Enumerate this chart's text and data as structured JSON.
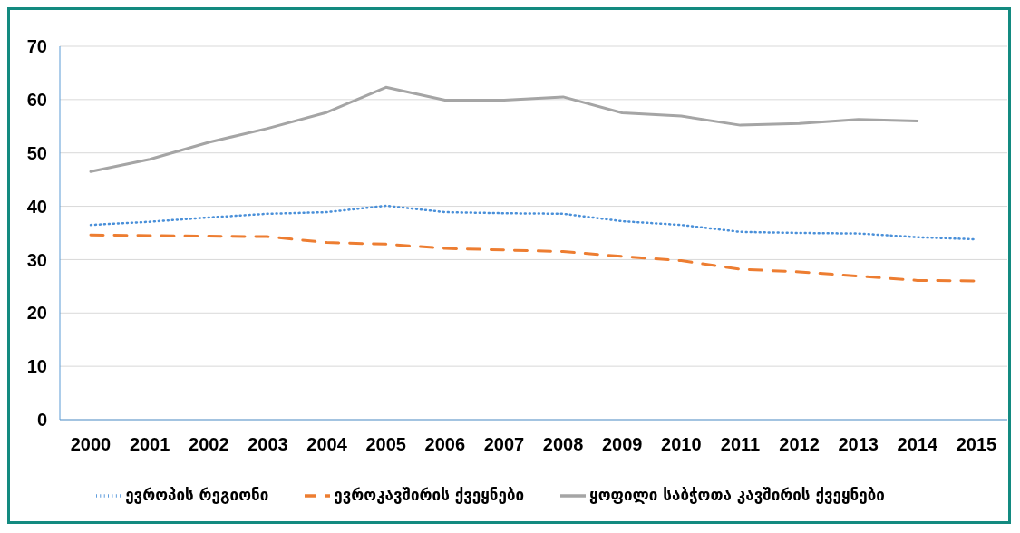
{
  "chart_data": {
    "type": "line",
    "categories": [
      "2000",
      "2001",
      "2002",
      "2003",
      "2004",
      "2005",
      "2006",
      "2007",
      "2008",
      "2009",
      "2010",
      "2011",
      "2012",
      "2013",
      "2014",
      "2015"
    ],
    "series": [
      {
        "name": "ევროპის რეგიონი",
        "color": "#4a90d9",
        "line_style": "dotted",
        "values": [
          36.5,
          37.1,
          37.9,
          38.6,
          38.9,
          40.1,
          38.9,
          38.7,
          38.6,
          37.2,
          36.5,
          35.2,
          35.0,
          34.9,
          34.2,
          33.8
        ]
      },
      {
        "name": "ევროკავშირის ქვეყნები",
        "color": "#ed7d31",
        "line_style": "dashed",
        "values": [
          34.6,
          34.5,
          34.4,
          34.3,
          33.2,
          32.9,
          32.1,
          31.8,
          31.5,
          30.6,
          29.8,
          28.2,
          27.7,
          26.9,
          26.1,
          26.0
        ]
      },
      {
        "name": "ყოფილი საბჭოთა კავშირის ქვეყნები",
        "color": "#a5a5a5",
        "line_style": "solid",
        "values": [
          46.5,
          48.8,
          52.0,
          54.6,
          57.6,
          62.3,
          59.9,
          59.9,
          60.5,
          57.5,
          56.9,
          55.2,
          55.5,
          56.3,
          56.0,
          null
        ]
      }
    ],
    "ylim": [
      0,
      70
    ],
    "yticks": [
      0,
      10,
      20,
      30,
      40,
      50,
      60,
      70
    ],
    "grid": "y",
    "legend": "bottom",
    "marker": "none"
  }
}
